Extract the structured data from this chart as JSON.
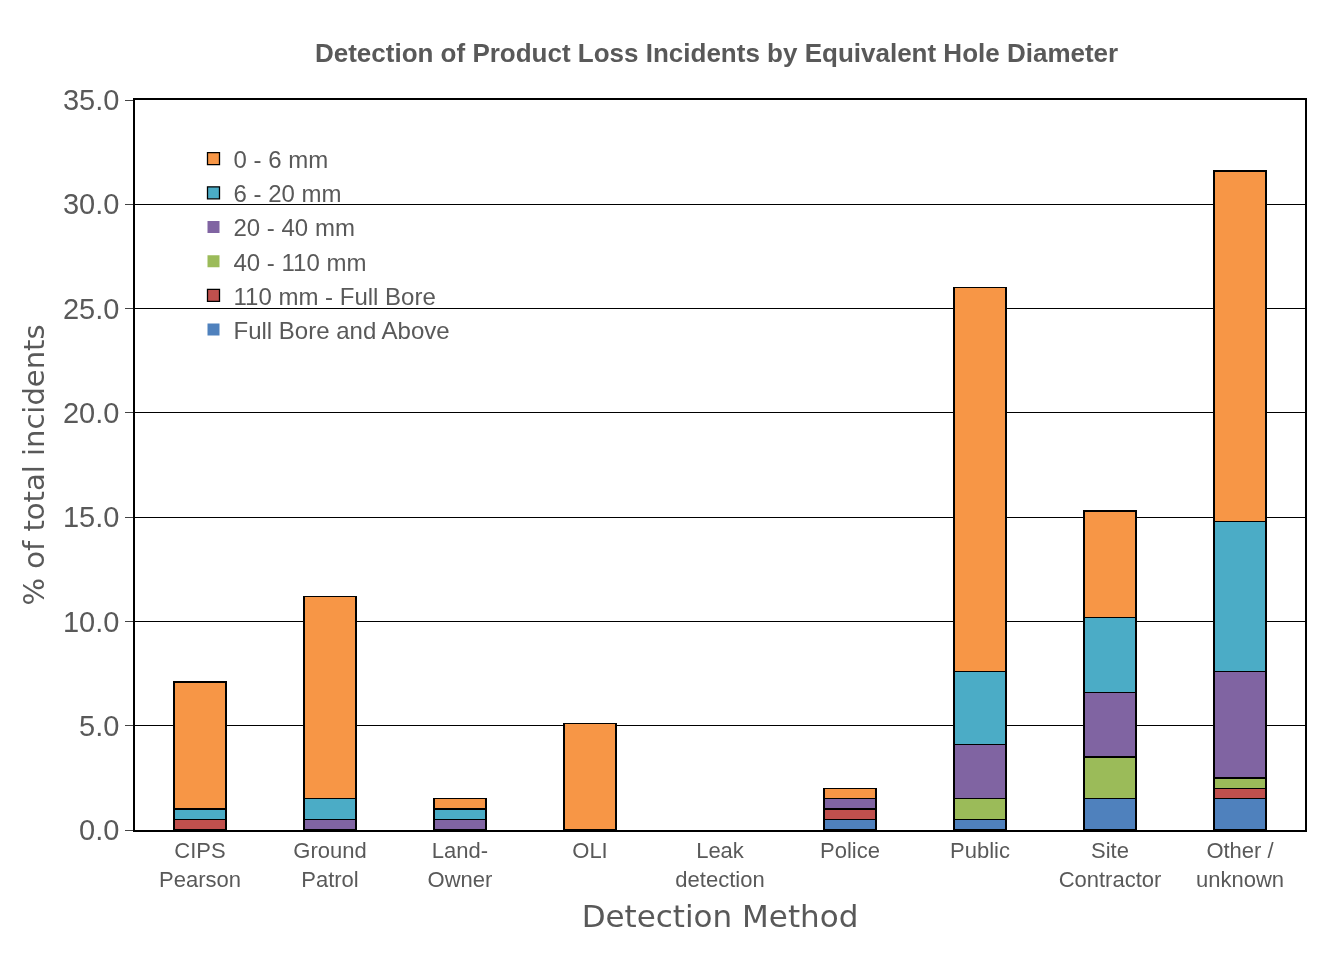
{
  "chart_data": {
    "type": "bar",
    "title": "Detection of Product Loss Incidents by Equivalent Hole Diameter",
    "xlabel": "Detection Method",
    "ylabel": "% of total incidents",
    "categories": [
      "CIPS\nPearson",
      "Ground\nPatrol",
      "Land-\nOwner",
      "OLI",
      "Leak\ndetection",
      "Police",
      "Public",
      "Site\nContractor",
      "Other /\nunknown"
    ],
    "stacked": true,
    "series": [
      {
        "name": "Full Bore and Above",
        "color": "#4f81bd",
        "values": [
          0,
          0,
          0,
          0,
          0,
          0.5,
          0.5,
          1.5,
          1.5
        ]
      },
      {
        "name": "110 mm - Full Bore",
        "color": "#c0504d",
        "values": [
          0.5,
          0,
          0,
          0,
          0,
          0.5,
          0,
          0,
          0.5
        ]
      },
      {
        "name": "40 - 110 mm",
        "color": "#9bbb59",
        "values": [
          0,
          0,
          0,
          0,
          0,
          0,
          1.0,
          2.0,
          0.5
        ]
      },
      {
        "name": "20 - 40 mm",
        "color": "#8064a2",
        "values": [
          0,
          0.5,
          0.5,
          0,
          0,
          0.5,
          2.6,
          3.1,
          5.1
        ]
      },
      {
        "name": "6 - 20 mm",
        "color": "#4bacc6",
        "values": [
          0.5,
          1.0,
          0.5,
          0,
          0,
          0,
          3.5,
          3.6,
          7.2
        ]
      },
      {
        "name": "0 - 6 mm",
        "color": "#f79646",
        "values": [
          6.1,
          9.7,
          0.5,
          5.1,
          0,
          0.5,
          18.4,
          5.1,
          16.8
        ]
      }
    ],
    "ylim": [
      0,
      35
    ],
    "yticks": [
      {
        "value": 0,
        "label": "0.0"
      },
      {
        "value": 5,
        "label": "5.0"
      },
      {
        "value": 10,
        "label": "10.0"
      },
      {
        "value": 15,
        "label": "15.0"
      },
      {
        "value": 20,
        "label": "20.0"
      },
      {
        "value": 25,
        "label": "25.0"
      },
      {
        "value": 30,
        "label": "30.0"
      },
      {
        "value": 35,
        "label": "35.0"
      }
    ],
    "grid": "y",
    "legend": "top left"
  }
}
